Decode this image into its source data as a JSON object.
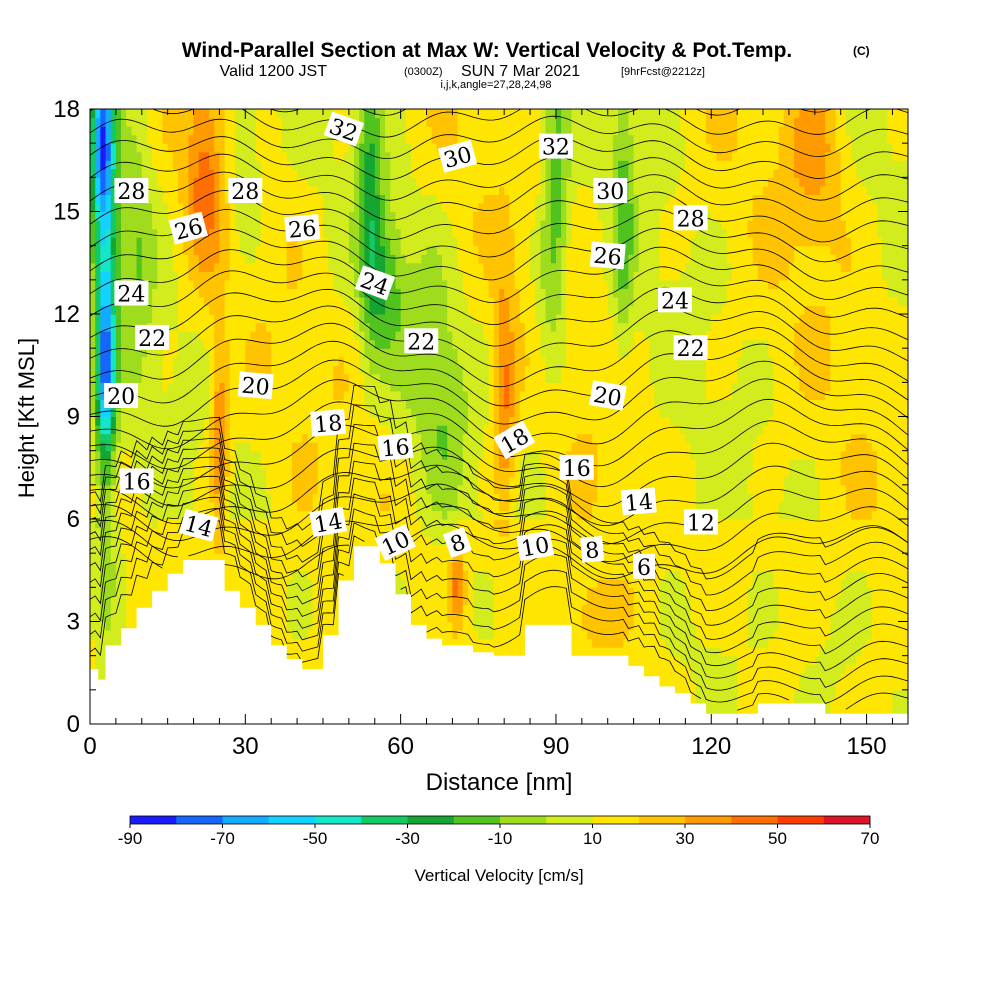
{
  "header": {
    "title": "Wind-Parallel Section at Max W: Vertical Velocity & Pot.Temp.",
    "title_mark": "(C)",
    "subtitle_left": "Valid 1200 JST",
    "subtitle_small1": "(0300Z)",
    "subtitle_mid": "SUN 7 Mar 2021",
    "subtitle_small2": "[9hrFcst@2212z]",
    "subtitle_line3": "i,j,k,angle=27,28,24,98"
  },
  "chart_data": {
    "type": "heatmap",
    "xlabel": "Distance [nm]",
    "ylabel": "Height [Kft MSL]",
    "xlim": [
      0,
      158
    ],
    "ylim": [
      0,
      18
    ],
    "x_ticks": [
      0,
      30,
      60,
      90,
      120,
      150
    ],
    "y_ticks": [
      0,
      3,
      6,
      9,
      12,
      15,
      18
    ],
    "colorbar": {
      "label": "Vertical Velocity [cm/s]",
      "tick_labels": [
        "-90",
        "-70",
        "-50",
        "-30",
        "-10",
        "10",
        "30",
        "50",
        "70"
      ],
      "boundaries": [
        -90,
        -80,
        -70,
        -60,
        -50,
        -40,
        -30,
        -20,
        -10,
        0,
        10,
        20,
        30,
        40,
        50,
        60,
        70
      ],
      "colors": [
        "#1a1aff",
        "#1466ff",
        "#14aaff",
        "#14d2ff",
        "#14e6c8",
        "#14c864",
        "#14a532",
        "#50c31e",
        "#a0dc1e",
        "#d2ec1e",
        "#ffe600",
        "#ffc300",
        "#ff9b00",
        "#ff6e00",
        "#ff3c00",
        "#dc1428",
        "#a00a50",
        "#5a0a8c"
      ]
    },
    "terrain": [
      [
        0,
        1.6
      ],
      [
        0,
        1.6
      ],
      [
        1.6,
        1.6
      ],
      [
        1.6,
        1.3
      ],
      [
        3,
        1.3
      ],
      [
        3,
        2.3
      ],
      [
        6,
        2.3
      ],
      [
        6,
        2.8
      ],
      [
        9,
        2.8
      ],
      [
        9,
        3.4
      ],
      [
        12,
        3.4
      ],
      [
        12,
        3.9
      ],
      [
        15,
        3.9
      ],
      [
        15,
        4.4
      ],
      [
        18,
        4.4
      ],
      [
        18,
        4.8
      ],
      [
        26,
        4.8
      ],
      [
        26,
        3.9
      ],
      [
        29,
        3.9
      ],
      [
        29,
        3.4
      ],
      [
        32,
        3.4
      ],
      [
        32,
        2.9
      ],
      [
        35,
        2.9
      ],
      [
        35,
        2.3
      ],
      [
        38,
        2.3
      ],
      [
        38,
        1.9
      ],
      [
        41,
        1.9
      ],
      [
        41,
        1.6
      ],
      [
        45,
        1.6
      ],
      [
        45,
        2.6
      ],
      [
        48,
        2.6
      ],
      [
        48,
        4.2
      ],
      [
        51,
        4.2
      ],
      [
        51,
        5.2
      ],
      [
        56,
        5.2
      ],
      [
        56,
        4.7
      ],
      [
        59,
        4.7
      ],
      [
        59,
        3.8
      ],
      [
        62,
        3.8
      ],
      [
        62,
        2.9
      ],
      [
        65,
        2.9
      ],
      [
        65,
        2.5
      ],
      [
        68,
        2.5
      ],
      [
        68,
        2.3
      ],
      [
        71,
        2.3
      ],
      [
        71,
        2.3
      ],
      [
        74,
        2.3
      ],
      [
        74,
        2.1
      ],
      [
        78,
        2.1
      ],
      [
        78,
        2.0
      ],
      [
        84,
        2.0
      ],
      [
        84,
        2.9
      ],
      [
        93,
        2.9
      ],
      [
        93,
        2.0
      ],
      [
        104,
        2.0
      ],
      [
        104,
        1.7
      ],
      [
        107,
        1.7
      ],
      [
        107,
        1.4
      ],
      [
        110,
        1.4
      ],
      [
        110,
        1.1
      ],
      [
        113,
        1.1
      ],
      [
        113,
        0.9
      ],
      [
        116,
        0.9
      ],
      [
        116,
        0.6
      ],
      [
        119,
        0.6
      ],
      [
        119,
        0.3
      ],
      [
        129,
        0.3
      ],
      [
        129,
        0.6
      ],
      [
        142,
        0.6
      ],
      [
        142,
        0.3
      ],
      [
        158,
        0.3
      ]
    ],
    "velocity_features": [
      {
        "x": 3,
        "y": 14,
        "sx": 1.6,
        "sy": 6.0,
        "w": -55
      },
      {
        "x": 3,
        "y": 10.3,
        "sx": 1.2,
        "sy": 1.6,
        "w": -40
      },
      {
        "x": 2,
        "y": 17,
        "sx": 1.5,
        "sy": 1.5,
        "w": -45
      },
      {
        "x": 9,
        "y": 14,
        "sx": 2.5,
        "sy": 3.5,
        "w": -18
      },
      {
        "x": 22,
        "y": 16,
        "sx": 2.5,
        "sy": 2.0,
        "w": 28
      },
      {
        "x": 25,
        "y": 8.5,
        "sx": 1.2,
        "sy": 2.2,
        "w": 28
      },
      {
        "x": 30,
        "y": 16.5,
        "sx": 2.5,
        "sy": 2.0,
        "w": -15
      },
      {
        "x": 54,
        "y": 15.5,
        "sx": 1.8,
        "sy": 3.0,
        "w": -32
      },
      {
        "x": 57,
        "y": 13,
        "sx": 2.5,
        "sy": 1.5,
        "w": -25
      },
      {
        "x": 65,
        "y": 11,
        "sx": 4,
        "sy": 2.2,
        "w": -14
      },
      {
        "x": 69,
        "y": 8.5,
        "sx": 3,
        "sy": 2.0,
        "w": -12
      },
      {
        "x": 80,
        "y": 9.5,
        "sx": 1.5,
        "sy": 2.4,
        "w": 30
      },
      {
        "x": 71,
        "y": 4,
        "sx": 1.0,
        "sy": 0.8,
        "w": 30
      },
      {
        "x": 90,
        "y": 15.5,
        "sx": 1.8,
        "sy": 2.8,
        "w": -28
      },
      {
        "x": 103,
        "y": 15,
        "sx": 1.5,
        "sy": 3.0,
        "w": -25
      },
      {
        "x": 88,
        "y": 12,
        "sx": 2.0,
        "sy": 2.0,
        "w": -12
      },
      {
        "x": 98,
        "y": 3.2,
        "sx": 4,
        "sy": 0.8,
        "w": 16
      },
      {
        "x": 140,
        "y": 17,
        "sx": 4,
        "sy": 2.0,
        "w": 20
      },
      {
        "x": 120,
        "y": 2,
        "sx": 5,
        "sy": 1.2,
        "w": -5
      },
      {
        "x": 143,
        "y": 2,
        "sx": 4,
        "sy": 1.2,
        "w": -5
      }
    ],
    "contour_labels": [
      {
        "x": 8,
        "y": 15.6,
        "text": "28",
        "angle": 0
      },
      {
        "x": 30,
        "y": 15.6,
        "text": "28",
        "angle": 0
      },
      {
        "x": 19,
        "y": 14.5,
        "text": "26",
        "angle": -15
      },
      {
        "x": 41,
        "y": 14.5,
        "text": "26",
        "angle": -5
      },
      {
        "x": 49,
        "y": 17.4,
        "text": "32",
        "angle": 20
      },
      {
        "x": 71,
        "y": 16.6,
        "text": "30",
        "angle": -15
      },
      {
        "x": 90,
        "y": 16.9,
        "text": "32",
        "angle": 0
      },
      {
        "x": 100.5,
        "y": 15.6,
        "text": "30",
        "angle": 0
      },
      {
        "x": 116,
        "y": 14.8,
        "text": "28",
        "angle": 0
      },
      {
        "x": 8,
        "y": 12.6,
        "text": "24",
        "angle": 0
      },
      {
        "x": 55,
        "y": 12.9,
        "text": "24",
        "angle": 20
      },
      {
        "x": 100,
        "y": 13.7,
        "text": "26",
        "angle": 5
      },
      {
        "x": 113,
        "y": 12.4,
        "text": "24",
        "angle": 0
      },
      {
        "x": 12,
        "y": 11.3,
        "text": "22",
        "angle": 0
      },
      {
        "x": 64,
        "y": 11.2,
        "text": "22",
        "angle": 0
      },
      {
        "x": 116,
        "y": 11.0,
        "text": "22",
        "angle": 0
      },
      {
        "x": 6,
        "y": 9.6,
        "text": "20",
        "angle": 0
      },
      {
        "x": 32,
        "y": 9.9,
        "text": "20",
        "angle": 5
      },
      {
        "x": 100,
        "y": 9.6,
        "text": "20",
        "angle": 10
      },
      {
        "x": 46,
        "y": 8.8,
        "text": "18",
        "angle": -5
      },
      {
        "x": 82,
        "y": 8.3,
        "text": "18",
        "angle": -30
      },
      {
        "x": 59,
        "y": 8.1,
        "text": "16",
        "angle": -5
      },
      {
        "x": 9,
        "y": 7.1,
        "text": "16",
        "angle": 0
      },
      {
        "x": 94,
        "y": 7.5,
        "text": "16",
        "angle": 0
      },
      {
        "x": 106,
        "y": 6.5,
        "text": "14",
        "angle": -5
      },
      {
        "x": 21,
        "y": 5.8,
        "text": "14",
        "angle": 15
      },
      {
        "x": 46,
        "y": 5.9,
        "text": "14",
        "angle": -10
      },
      {
        "x": 118,
        "y": 5.9,
        "text": "12",
        "angle": 0
      },
      {
        "x": 59,
        "y": 5.3,
        "text": "10",
        "angle": -25
      },
      {
        "x": 71,
        "y": 5.3,
        "text": "8",
        "angle": -20
      },
      {
        "x": 86,
        "y": 5.2,
        "text": "10",
        "angle": -10
      },
      {
        "x": 97,
        "y": 5.1,
        "text": "8",
        "angle": -5
      },
      {
        "x": 107,
        "y": 4.6,
        "text": "6",
        "angle": 0
      }
    ]
  }
}
